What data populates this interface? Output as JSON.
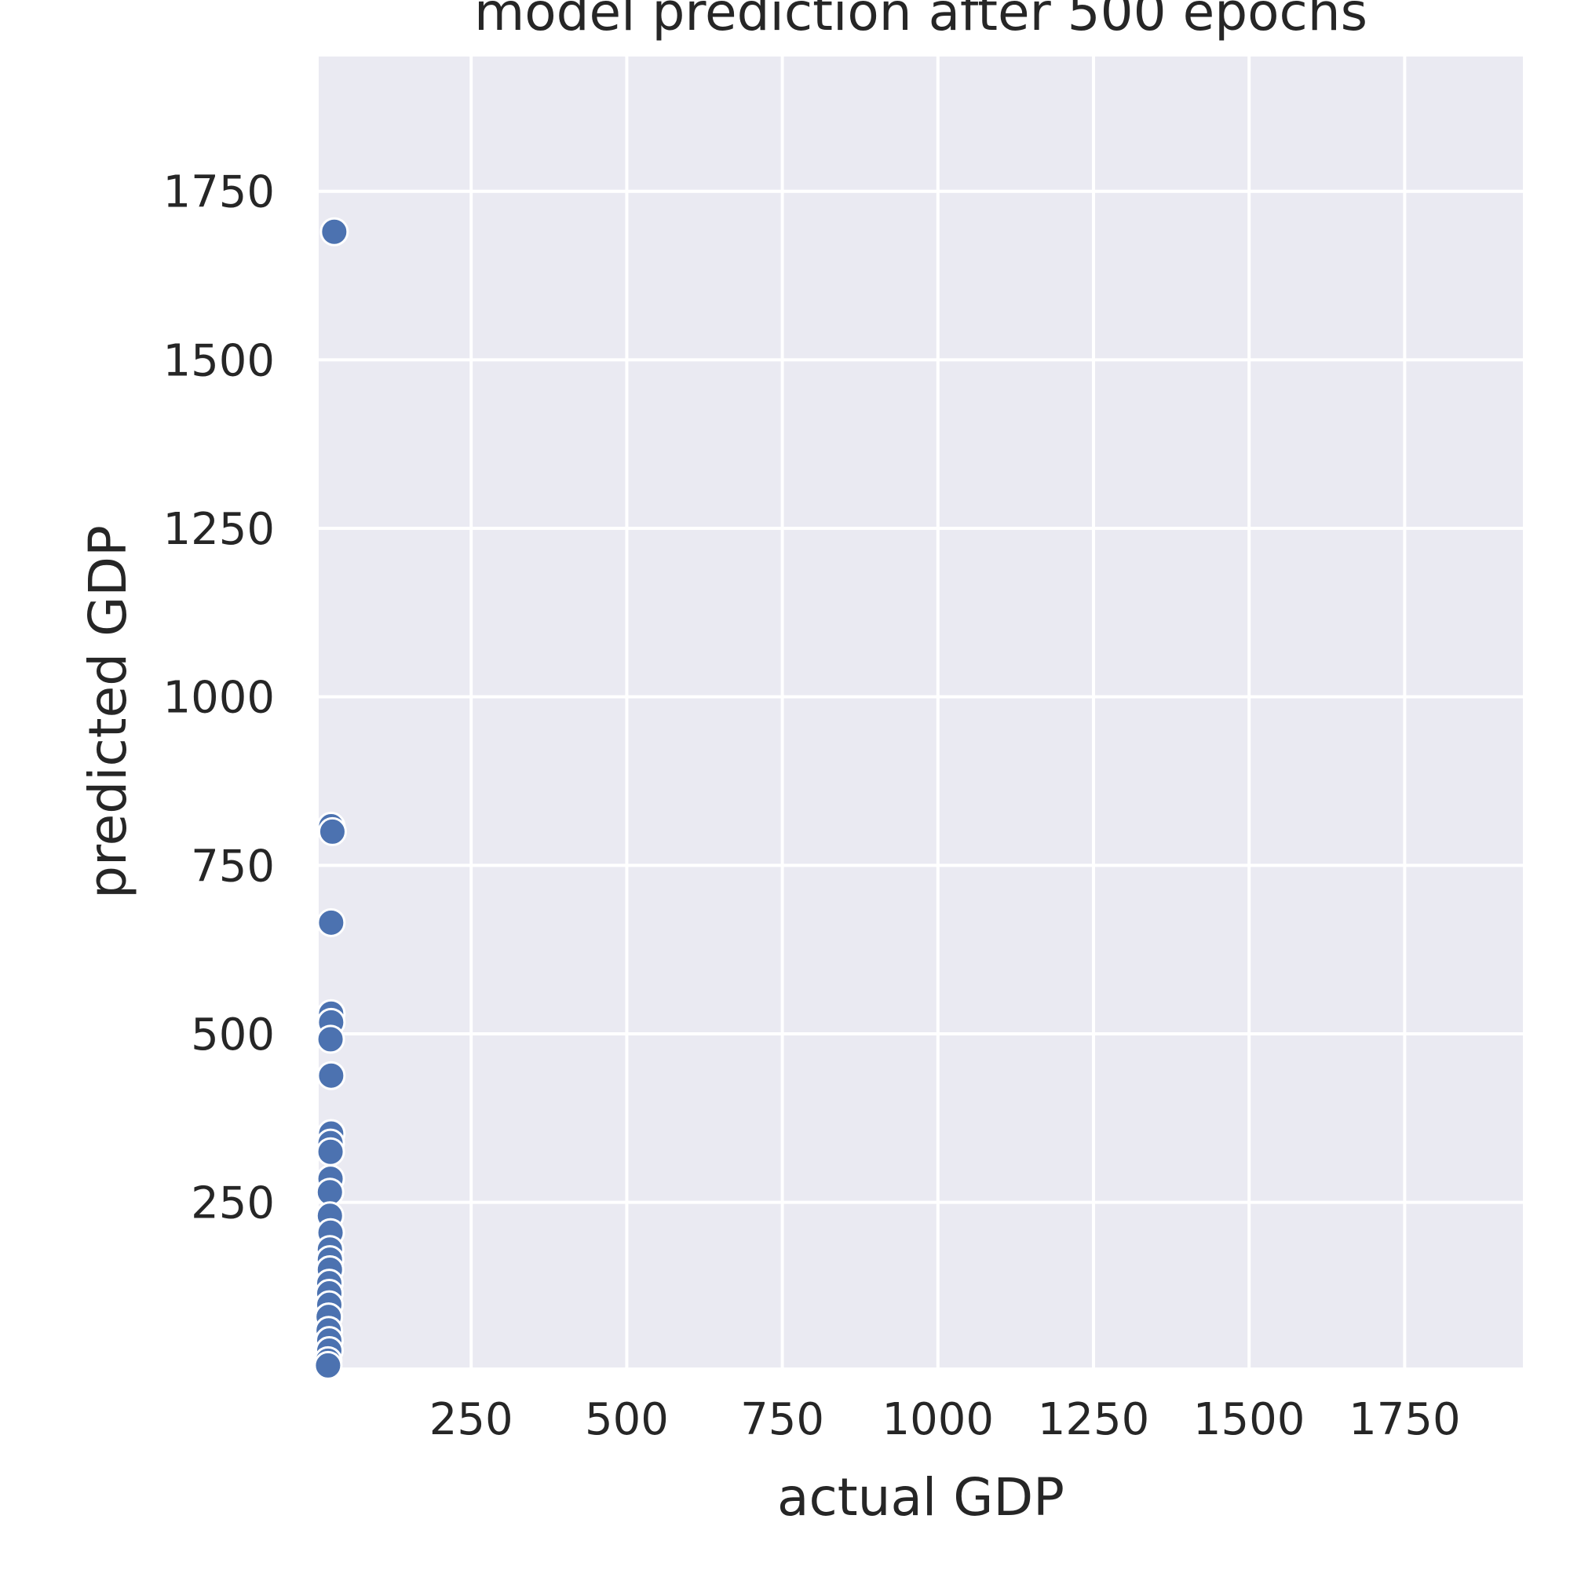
{
  "chart_data": {
    "type": "scatter",
    "title": "model prediction after 500 epochs",
    "xlabel": "actual GDP",
    "ylabel": "predicted GDP",
    "xlim": [
      5,
      1940
    ],
    "ylim": [
      5,
      1950
    ],
    "xticks": [
      250,
      500,
      750,
      1000,
      1250,
      1500,
      1750
    ],
    "yticks": [
      250,
      500,
      750,
      1000,
      1250,
      1500,
      1750
    ],
    "grid": true,
    "marker_color": "#4c72b0",
    "marker_edge_color": "#ffffff",
    "background_color": "#eaeaf2",
    "grid_color": "#ffffff",
    "points": [
      {
        "x": 30,
        "y": 1690
      },
      {
        "x": 25,
        "y": 808
      },
      {
        "x": 27,
        "y": 800
      },
      {
        "x": 25,
        "y": 665
      },
      {
        "x": 25,
        "y": 530
      },
      {
        "x": 25,
        "y": 517
      },
      {
        "x": 24,
        "y": 492
      },
      {
        "x": 25,
        "y": 438
      },
      {
        "x": 25,
        "y": 352
      },
      {
        "x": 24,
        "y": 338
      },
      {
        "x": 24,
        "y": 325
      },
      {
        "x": 24,
        "y": 285
      },
      {
        "x": 23,
        "y": 265
      },
      {
        "x": 23,
        "y": 230
      },
      {
        "x": 24,
        "y": 205
      },
      {
        "x": 23,
        "y": 180
      },
      {
        "x": 23,
        "y": 165
      },
      {
        "x": 23,
        "y": 150
      },
      {
        "x": 22,
        "y": 130
      },
      {
        "x": 22,
        "y": 115
      },
      {
        "x": 22,
        "y": 98
      },
      {
        "x": 21,
        "y": 80
      },
      {
        "x": 21,
        "y": 60
      },
      {
        "x": 22,
        "y": 45
      },
      {
        "x": 22,
        "y": 30
      },
      {
        "x": 20,
        "y": 15
      },
      {
        "x": 20,
        "y": 8
      }
    ]
  }
}
